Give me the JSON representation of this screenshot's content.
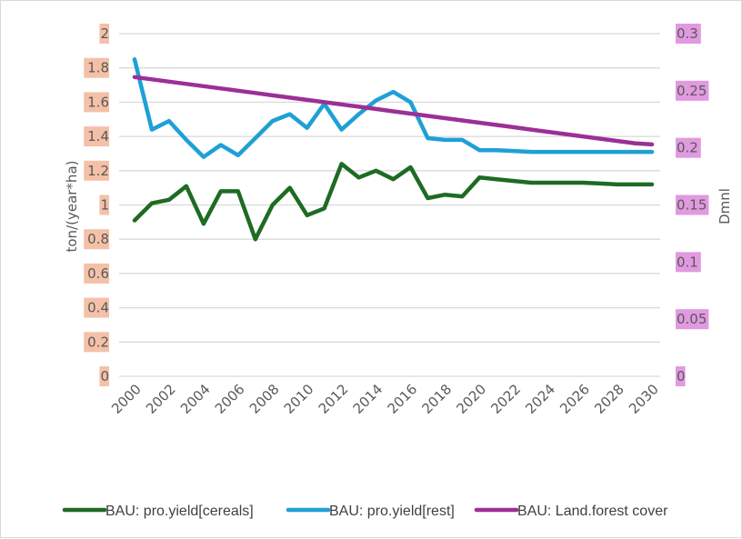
{
  "chart_data": {
    "type": "line",
    "title": "",
    "xlabel": "",
    "ylabel": "ton/(year*ha)",
    "y2label": "Dmnl",
    "ylim": [
      0,
      2
    ],
    "y2lim": [
      0,
      0.3
    ],
    "grid": true,
    "legend_position": "bottom",
    "x": [
      2000,
      2001,
      2002,
      2003,
      2004,
      2005,
      2006,
      2007,
      2008,
      2009,
      2010,
      2011,
      2012,
      2013,
      2014,
      2015,
      2016,
      2017,
      2018,
      2019,
      2020,
      2021,
      2022,
      2023,
      2024,
      2025,
      2026,
      2027,
      2028,
      2029,
      2030
    ],
    "x_tick_labels": [
      "2000",
      "2002",
      "2004",
      "2006",
      "2008",
      "2010",
      "2012",
      "2014",
      "2016",
      "2018",
      "2020",
      "2022",
      "2024",
      "2026",
      "2028",
      "2030"
    ],
    "y_tick_labels": [
      "0",
      "0.2",
      "0.4",
      "0.6",
      "0.8",
      "1",
      "1.2",
      "1.4",
      "1.6",
      "1.8",
      "2"
    ],
    "y2_tick_labels": [
      "0",
      "0.05",
      "0.1",
      "0.15",
      "0.2",
      "0.25",
      "0.3"
    ],
    "series": [
      {
        "name": "BAU: pro.yield[cereals]",
        "axis": "left",
        "color": "#1e6b24",
        "values": [
          0.91,
          1.01,
          1.03,
          1.11,
          0.89,
          1.08,
          1.08,
          0.8,
          1.0,
          1.1,
          0.94,
          0.98,
          1.24,
          1.16,
          1.2,
          1.15,
          1.22,
          1.04,
          1.06,
          1.05,
          1.16,
          1.15,
          1.14,
          1.13,
          1.13,
          1.13,
          1.13,
          1.125,
          1.12,
          1.12,
          1.12
        ]
      },
      {
        "name": "BAU: pro.yield[rest]",
        "axis": "left",
        "color": "#1ea0d6",
        "values": [
          1.85,
          1.44,
          1.49,
          1.38,
          1.28,
          1.35,
          1.29,
          1.39,
          1.49,
          1.53,
          1.45,
          1.59,
          1.44,
          1.53,
          1.61,
          1.66,
          1.6,
          1.39,
          1.38,
          1.38,
          1.32,
          1.32,
          1.315,
          1.31,
          1.31,
          1.31,
          1.31,
          1.31,
          1.31,
          1.31,
          1.31
        ]
      },
      {
        "name": "BAU: Land.forest cover",
        "axis": "right",
        "color": "#9c2f96",
        "values": [
          0.262,
          0.26,
          0.258,
          0.256,
          0.254,
          0.252,
          0.25,
          0.248,
          0.246,
          0.244,
          0.242,
          0.24,
          0.238,
          0.236,
          0.234,
          0.232,
          0.23,
          0.228,
          0.226,
          0.224,
          0.222,
          0.22,
          0.218,
          0.216,
          0.214,
          0.212,
          0.21,
          0.208,
          0.206,
          0.204,
          0.203
        ]
      }
    ]
  },
  "style": {
    "left_tick_highlight": "#f4c1a8",
    "right_tick_highlight": "#e19ae0",
    "grid_color": "#d9d9d9",
    "text_color": "#595959"
  }
}
